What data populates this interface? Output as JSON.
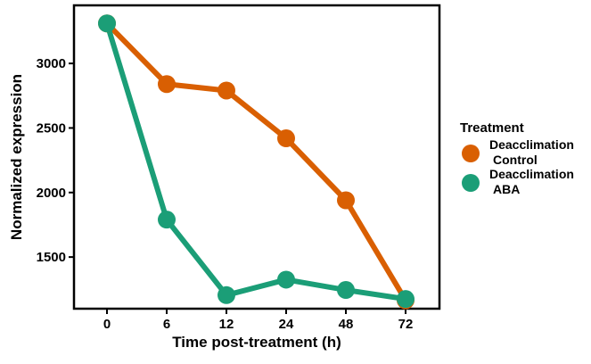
{
  "chart_data": {
    "type": "line",
    "title": "",
    "xlabel": "Time post-treatment (h)",
    "ylabel": "Normalized expression",
    "categories": [
      "0",
      "6",
      "12",
      "24",
      "48",
      "72"
    ],
    "yticks": [
      "1500",
      "2000",
      "2500",
      "3000"
    ],
    "ylim": [
      1100,
      3450
    ],
    "grid": false,
    "legend_position": "right",
    "legend_title": "Treatment",
    "series": [
      {
        "name": "Deacclimation Control",
        "legend_lines": [
          "Deacclimation",
          "Control"
        ],
        "color": "#D95F02",
        "values": [
          3310,
          2840,
          2790,
          2420,
          1940,
          1165
        ]
      },
      {
        "name": "Deacclimation ABA",
        "legend_lines": [
          "Deacclimation",
          "ABA"
        ],
        "color": "#1B9E77",
        "values": [
          3310,
          1790,
          1205,
          1325,
          1245,
          1175
        ]
      }
    ]
  }
}
